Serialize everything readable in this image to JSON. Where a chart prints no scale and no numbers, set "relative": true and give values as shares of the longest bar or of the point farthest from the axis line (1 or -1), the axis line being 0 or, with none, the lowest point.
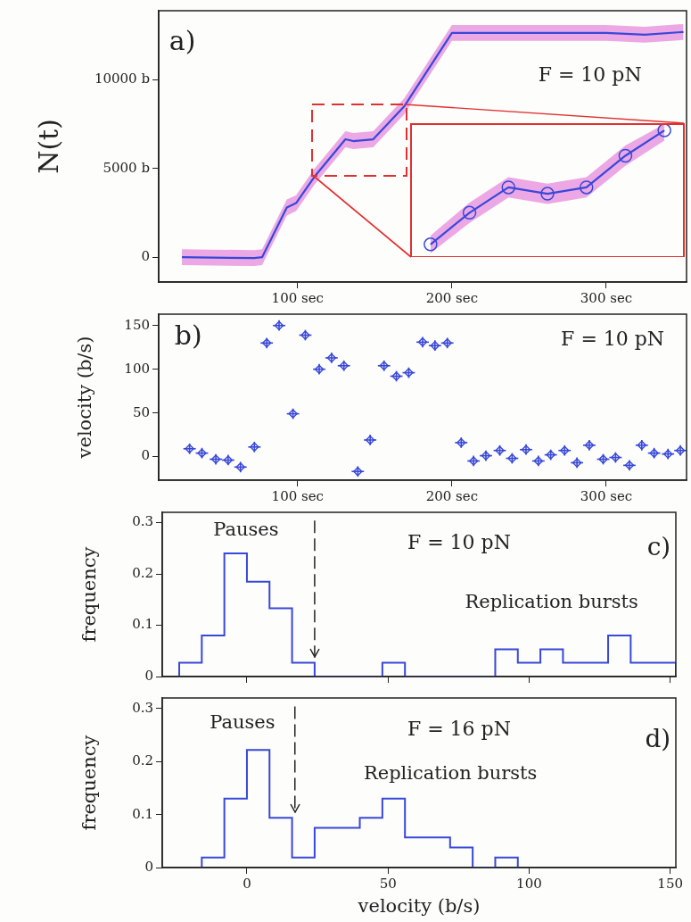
{
  "chart_data": [
    {
      "type": "line",
      "ylabel": "N(t)",
      "annotations": [
        "a)",
        "F = 10 pN"
      ],
      "xlim": [
        10,
        352
      ],
      "xticks": [
        {
          "value": 100,
          "label": "100 sec"
        },
        {
          "value": 200,
          "label": "200 sec"
        },
        {
          "value": 300,
          "label": "300 sec"
        }
      ],
      "ylim": [
        -1400,
        13900
      ],
      "yticks": [
        0,
        {
          "value": 5000,
          "label": "5000 b"
        },
        {
          "value": 10000,
          "label": "10000 b"
        }
      ],
      "x": [
        25,
        72,
        77,
        93,
        99,
        111,
        131,
        136,
        149,
        169,
        175,
        200,
        300,
        325,
        350
      ],
      "series": [
        {
          "color": "#3848d8",
          "values": [
            0,
            -50,
            0,
            2800,
            3050,
            4550,
            6650,
            6550,
            6650,
            8500,
            9300,
            12650,
            12650,
            12550,
            12700
          ],
          "lower": [
            -450,
            -500,
            -450,
            2350,
            2600,
            4100,
            6200,
            6100,
            6200,
            8050,
            8850,
            12200,
            12200,
            12100,
            12250
          ],
          "upper": [
            450,
            400,
            450,
            3250,
            3500,
            5000,
            7100,
            7000,
            7100,
            8950,
            9750,
            13100,
            13100,
            13000,
            13150
          ]
        }
      ]
    },
    {
      "type": "line",
      "relative": true,
      "marker": "circle",
      "categories": [
        null,
        null,
        null,
        null,
        null,
        null,
        null
      ],
      "series": [
        {
          "color": "#3848d8",
          "values": [
            0.1,
            0.35,
            0.55,
            0.5,
            0.55,
            0.8,
            1.0
          ],
          "lower": [
            0.03,
            0.27,
            0.47,
            0.42,
            0.47,
            0.72,
            0.92
          ],
          "upper": [
            0.17,
            0.43,
            0.63,
            0.58,
            0.63,
            0.88,
            1.05
          ]
        }
      ]
    },
    {
      "type": "scatter",
      "ylabel": "velocity (b/s)",
      "annotations": [
        "b)",
        "F = 10 pN"
      ],
      "marker": "diamond",
      "color": "#3848d8",
      "xlim": [
        10,
        352
      ],
      "xticks": [
        {
          "value": 100,
          "label": "100 sec"
        },
        {
          "value": 200,
          "label": "200 sec"
        },
        {
          "value": 300,
          "label": "300 sec"
        }
      ],
      "ylim": [
        -27,
        163
      ],
      "yticks": [
        0,
        50,
        100,
        150
      ],
      "x": [
        30,
        38,
        47,
        55,
        63,
        72,
        80,
        88,
        97,
        105,
        114,
        122,
        130,
        139,
        147,
        156,
        164,
        172,
        181,
        189,
        197,
        206,
        214,
        222,
        231,
        239,
        248,
        256,
        264,
        273,
        281,
        289,
        298,
        306,
        315,
        323,
        331,
        340,
        348
      ],
      "values": [
        9,
        4,
        -3,
        -4,
        -12,
        11,
        130,
        150,
        49,
        139,
        100,
        113,
        104,
        -17,
        19,
        104,
        92,
        96,
        131,
        127,
        130,
        16,
        -5,
        1,
        7,
        -2,
        8,
        -5,
        2,
        7,
        -7,
        13,
        -3,
        -1,
        -10,
        13,
        4,
        3,
        7
      ],
      "errors": [
        6,
        6,
        6,
        6,
        6,
        6,
        6,
        6,
        6,
        6,
        6,
        6,
        6,
        6,
        6,
        6,
        6,
        6,
        6,
        6,
        6,
        6,
        6,
        6,
        6,
        6,
        6,
        6,
        6,
        6,
        6,
        6,
        6,
        6,
        6,
        6,
        6,
        6,
        6
      ],
      "xerrors": [
        4,
        4,
        4,
        4,
        4,
        4,
        4,
        4,
        4,
        4,
        4,
        4,
        4,
        4,
        4,
        4,
        4,
        4,
        4,
        4,
        4,
        4,
        4,
        4,
        4,
        4,
        4,
        4,
        4,
        4,
        4,
        4,
        4,
        4,
        4,
        4,
        4,
        4,
        4
      ]
    },
    {
      "type": "histogram",
      "ylabel": "frequency",
      "annotations": [
        "Pauses",
        "F = 10 pN",
        "c)",
        "Replication bursts"
      ],
      "color": "#3848d8",
      "tick_labels": "y",
      "xlim": [
        -30,
        152
      ],
      "xticks": [
        0,
        50,
        100,
        150
      ],
      "ylim": [
        0,
        0.32
      ],
      "yticks": [
        0,
        0.1,
        0.2,
        0.3
      ],
      "bins": [
        -24,
        -16,
        -8,
        0,
        8,
        16,
        24,
        32,
        40,
        48,
        56,
        64,
        72,
        80,
        88,
        96,
        104,
        112,
        120,
        128,
        136,
        144,
        152
      ],
      "values": [
        0.027,
        0.08,
        0.24,
        0.185,
        0.133,
        0.027,
        0,
        0,
        0,
        0.027,
        0,
        0,
        0,
        0,
        0.053,
        0.027,
        0.053,
        0.027,
        0.027,
        0.08,
        0.027,
        0.027
      ],
      "ref_lines": [
        {
          "axis": "x",
          "value": 24,
          "line_style": "dashed",
          "color": "#222222"
        }
      ]
    },
    {
      "type": "histogram",
      "ylabel": "frequency",
      "xlabel": "velocity (b/s)",
      "annotations": [
        "Pauses",
        "F = 16 pN",
        "d)",
        "Replication bursts"
      ],
      "color": "#3848d8",
      "xlim": [
        -30,
        152
      ],
      "xticks": [
        0,
        50,
        100,
        150
      ],
      "ylim": [
        0,
        0.32
      ],
      "yticks": [
        0,
        0.1,
        0.2,
        0.3
      ],
      "bins": [
        -16,
        -8,
        0,
        8,
        16,
        24,
        32,
        40,
        48,
        56,
        64,
        72,
        80,
        88,
        96
      ],
      "values": [
        0.019,
        0.13,
        0.222,
        0.094,
        0.019,
        0.075,
        0.075,
        0.094,
        0.13,
        0.057,
        0.057,
        0.038,
        0,
        0.019
      ],
      "ref_lines": [
        {
          "axis": "x",
          "value": 17,
          "line_style": "dashed",
          "color": "#222222"
        }
      ]
    }
  ]
}
